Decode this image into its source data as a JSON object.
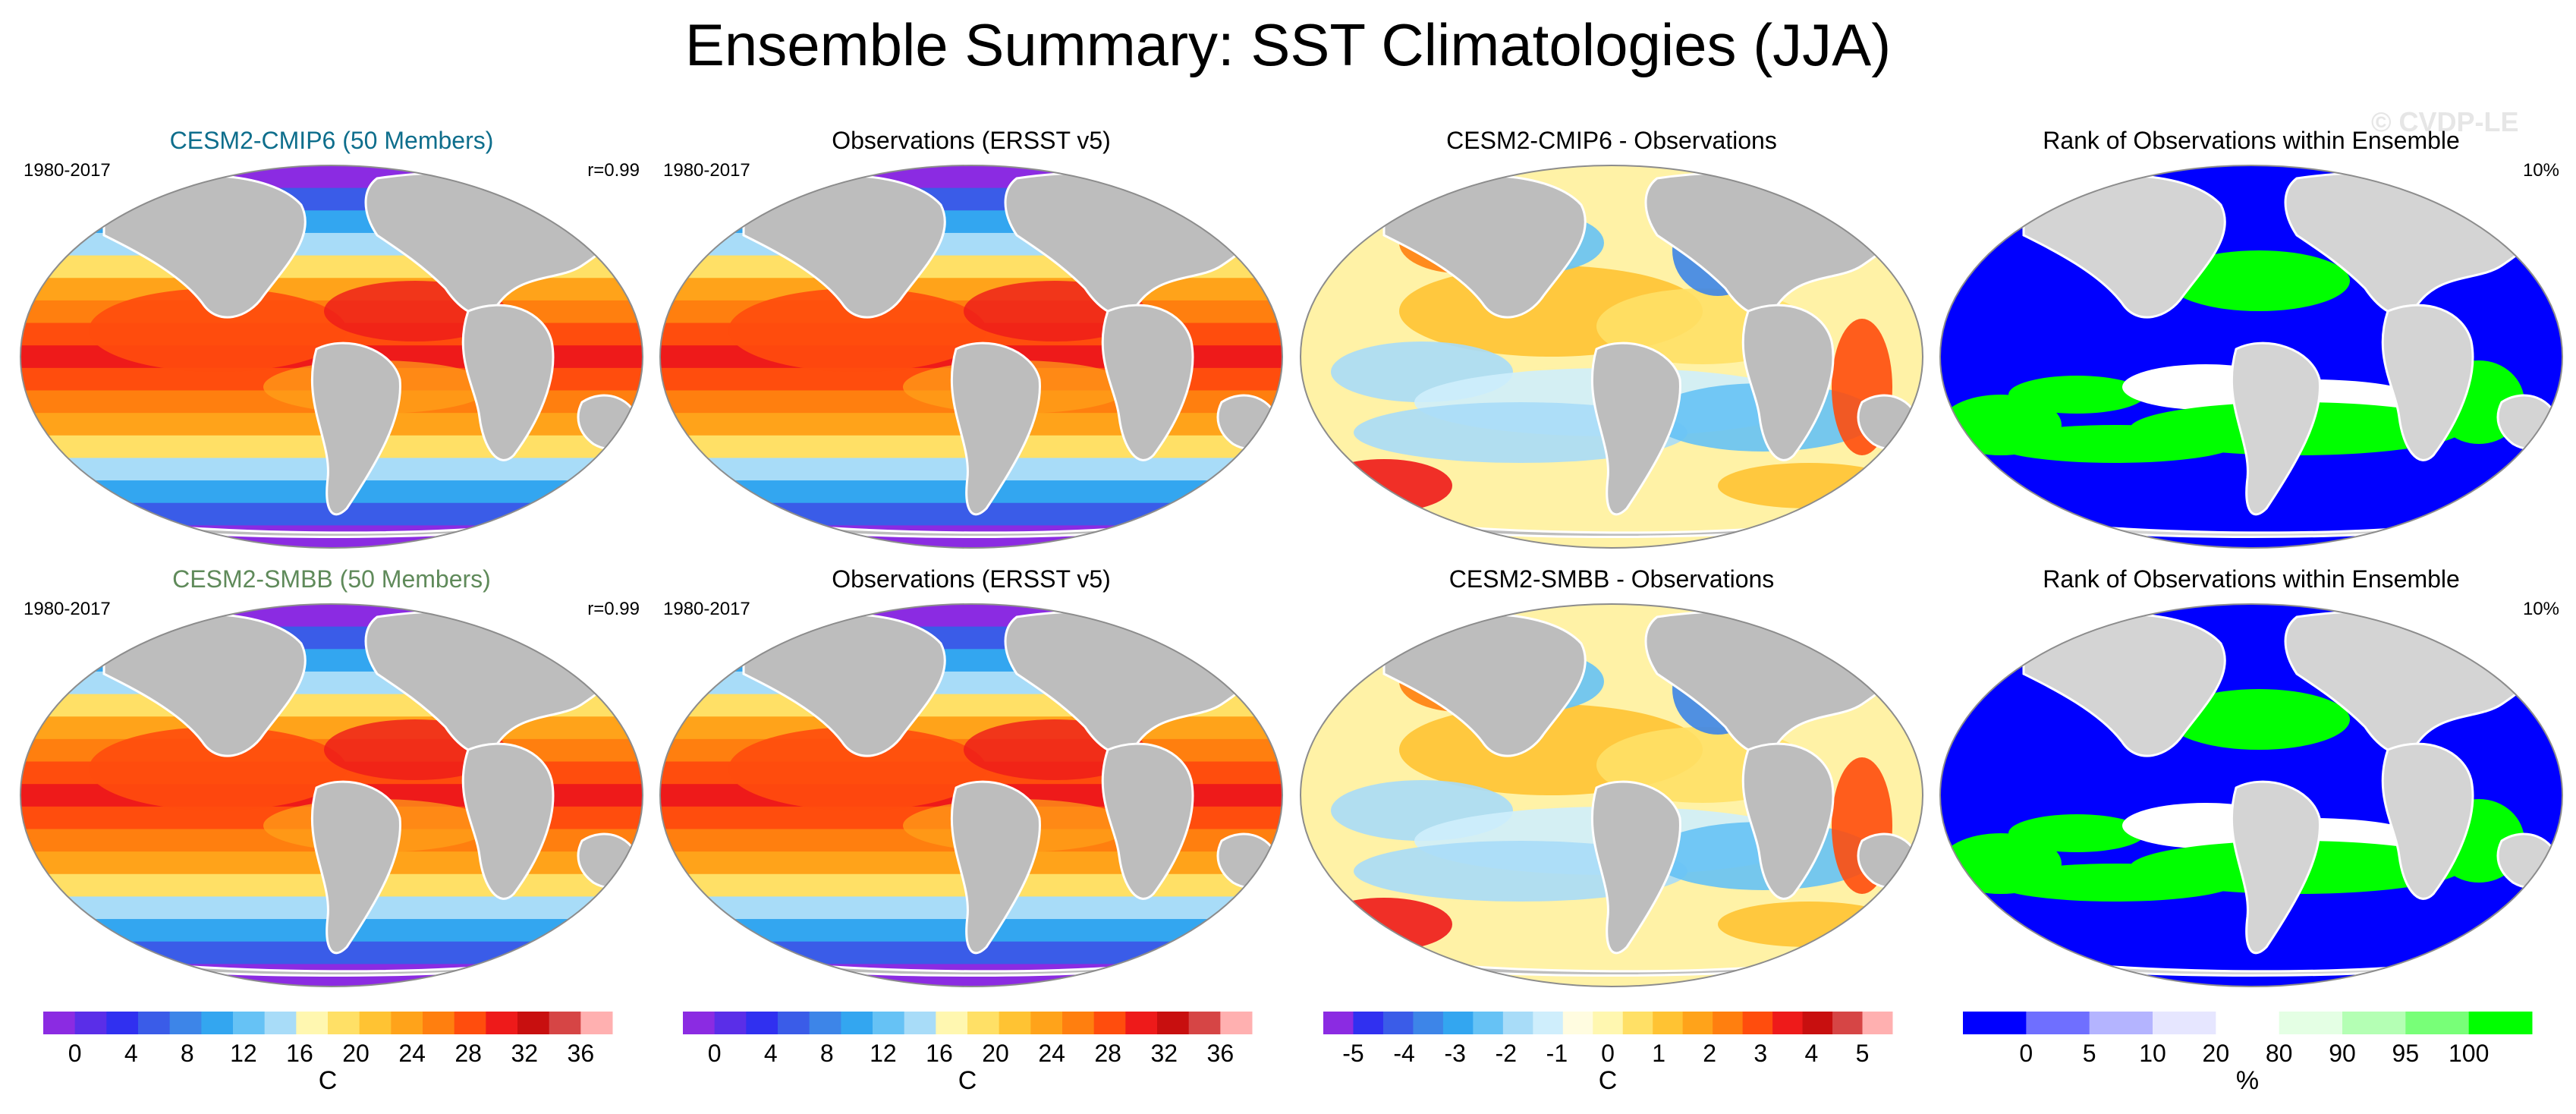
{
  "title": "Ensemble Summary: SST Climatologies (JJA)",
  "watermark": "© CVDP-LE",
  "chart_data": [
    {
      "type": "heatmap",
      "title": "CESM2-CMIP6 (50 Members)",
      "title_color": "#0e6e8c",
      "period": "1980-2017",
      "stat": "r=0.99",
      "field": "model_sst",
      "colorbar_label": "C"
    },
    {
      "type": "heatmap",
      "title": "Observations (ERSST v5)",
      "title_color": "#000000",
      "period": "1980-2017",
      "stat": "",
      "field": "obs_sst",
      "colorbar_label": "C"
    },
    {
      "type": "heatmap",
      "title": "CESM2-CMIP6 - Observations",
      "title_color": "#000000",
      "period": "",
      "stat": "",
      "field": "diff_cmip6",
      "colorbar_label": "C"
    },
    {
      "type": "heatmap",
      "title": "Rank of Observations within Ensemble",
      "title_color": "#000000",
      "period": "",
      "stat": "10%",
      "field": "rank_cmip6",
      "colorbar_label": "%"
    },
    {
      "type": "heatmap",
      "title": "CESM2-SMBB (50 Members)",
      "title_color": "#5f8a5a",
      "period": "1980-2017",
      "stat": "r=0.99",
      "field": "model_sst",
      "colorbar_label": "C"
    },
    {
      "type": "heatmap",
      "title": "Observations (ERSST v5)",
      "title_color": "#000000",
      "period": "1980-2017",
      "stat": "",
      "field": "obs_sst",
      "colorbar_label": "C"
    },
    {
      "type": "heatmap",
      "title": "CESM2-SMBB - Observations",
      "title_color": "#000000",
      "period": "",
      "stat": "",
      "field": "diff_smbb",
      "colorbar_label": "C"
    },
    {
      "type": "heatmap",
      "title": "Rank of Observations within Ensemble",
      "title_color": "#000000",
      "period": "",
      "stat": "10%",
      "field": "rank_smbb",
      "colorbar_label": "%"
    }
  ],
  "colorbars": [
    {
      "label": "C",
      "ticks": [
        "0",
        "4",
        "8",
        "12",
        "16",
        "20",
        "24",
        "28",
        "32",
        "36"
      ],
      "colors": [
        "#8b2be2",
        "#5a2ee8",
        "#3030f0",
        "#3a5ce8",
        "#3d85e8",
        "#33a6f0",
        "#66c2f5",
        "#a8dcf8",
        "#fff7b0",
        "#ffe066",
        "#ffc333",
        "#ffa31a",
        "#ff7f0f",
        "#ff4d0d",
        "#ee1a1a",
        "#c80f0f",
        "#d64545",
        "#ffb0b0"
      ]
    },
    {
      "label": "C",
      "ticks": [
        "0",
        "4",
        "8",
        "12",
        "16",
        "20",
        "24",
        "28",
        "32",
        "36"
      ],
      "colors": [
        "#8b2be2",
        "#5a2ee8",
        "#3030f0",
        "#3a5ce8",
        "#3d85e8",
        "#33a6f0",
        "#66c2f5",
        "#a8dcf8",
        "#fff7b0",
        "#ffe066",
        "#ffc333",
        "#ffa31a",
        "#ff7f0f",
        "#ff4d0d",
        "#ee1a1a",
        "#c80f0f",
        "#d64545",
        "#ffb0b0"
      ]
    },
    {
      "label": "C",
      "ticks": [
        "-5",
        "-4",
        "-3",
        "-2",
        "-1",
        "0",
        "1",
        "2",
        "3",
        "4",
        "5"
      ],
      "colors": [
        "#8b2be2",
        "#3030f0",
        "#3a5ce8",
        "#3d85e8",
        "#33a6f0",
        "#66c2f5",
        "#a8dcf8",
        "#cfeefc",
        "#fffce0",
        "#fff7b0",
        "#ffe066",
        "#ffc333",
        "#ffa31a",
        "#ff7f0f",
        "#ff4d0d",
        "#ee1a1a",
        "#c80f0f",
        "#d64545",
        "#ffb0b0"
      ]
    },
    {
      "label": "%",
      "ticks": [
        "0",
        "5",
        "10",
        "20",
        "80",
        "90",
        "95",
        "100"
      ],
      "colors": [
        "#0000ff",
        "#6f6fff",
        "#b4b4ff",
        "#e6e6ff",
        "#ffffff",
        "#e4ffe4",
        "#b4ffb4",
        "#78ff78",
        "#00ff00"
      ]
    }
  ]
}
